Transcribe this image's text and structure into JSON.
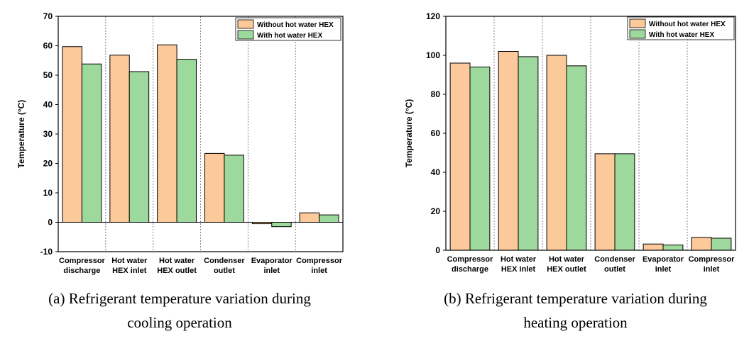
{
  "colors": {
    "without": "#fcc99b",
    "with": "#9dd99d",
    "outline": "#000000",
    "divider": "#666666"
  },
  "captions": {
    "a": {
      "line1": "(a)  Refrigerant  temperature  variation  during",
      "line2": "cooling  operation"
    },
    "b": {
      "line1": "(b)  Refrigerant  temperature  variation  during",
      "line2": "heating  operation"
    }
  },
  "chart_data": [
    {
      "id": "a",
      "type": "bar",
      "title": "",
      "xlabel": "",
      "ylabel": "Temperature (°C)",
      "ylim": [
        -10,
        70
      ],
      "yticks": [
        -10,
        0,
        10,
        20,
        30,
        40,
        50,
        60,
        70
      ],
      "legend_position": "top-right",
      "categories": [
        [
          "Compressor",
          "discharge"
        ],
        [
          "Hot water",
          "HEX inlet"
        ],
        [
          "Hot water",
          "HEX outlet"
        ],
        [
          "Condenser",
          "outlet"
        ],
        [
          "Evaporator",
          "inlet"
        ],
        [
          "Compressor",
          "inlet"
        ]
      ],
      "series": [
        {
          "name": "Without hot water HEX",
          "values": [
            59.7,
            56.8,
            60.3,
            23.4,
            -0.5,
            3.2
          ]
        },
        {
          "name": "With hot water HEX",
          "values": [
            53.8,
            51.2,
            55.4,
            22.8,
            -1.5,
            2.5
          ]
        }
      ]
    },
    {
      "id": "b",
      "type": "bar",
      "title": "",
      "xlabel": "",
      "ylabel": "Temperature (°C)",
      "ylim": [
        0,
        120
      ],
      "yticks": [
        0,
        20,
        40,
        60,
        80,
        100,
        120
      ],
      "legend_position": "top-right",
      "categories": [
        [
          "Compressor",
          "discharge"
        ],
        [
          "Hot water",
          "HEX inlet"
        ],
        [
          "Hot water",
          "HEX outlet"
        ],
        [
          "Condenser",
          "outlet"
        ],
        [
          "Evaporator",
          "inlet"
        ],
        [
          "Compressor",
          "inlet"
        ]
      ],
      "series": [
        {
          "name": "Without hot water HEX",
          "values": [
            96,
            102,
            100,
            49.5,
            3.2,
            6.6
          ]
        },
        {
          "name": "With hot water HEX",
          "values": [
            94,
            99.3,
            94.6,
            49.5,
            2.7,
            6.2
          ]
        }
      ]
    }
  ]
}
